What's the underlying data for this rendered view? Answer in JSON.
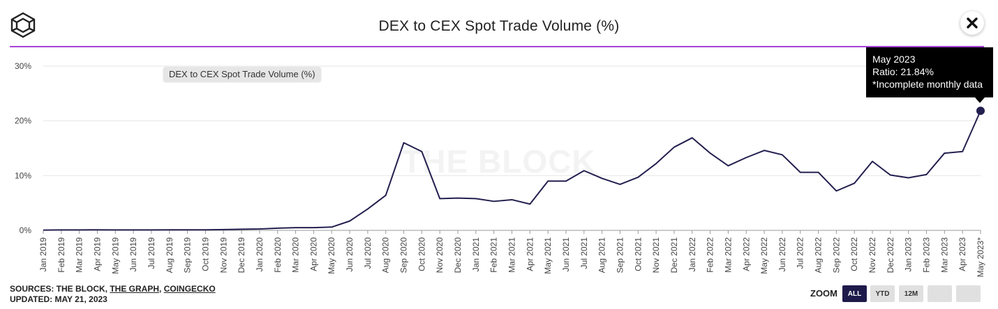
{
  "header": {
    "title": "DEX to CEX Spot Trade Volume (%)"
  },
  "legend": {
    "label": "DEX to CEX Spot Trade Volume (%)"
  },
  "watermark": "THE BLOCK",
  "tooltip": {
    "line1": "May 2023",
    "line2": "Ratio: 21.84%",
    "line3": "*Incomplete monthly data"
  },
  "footer": {
    "sources_prefix": "SOURCES: THE BLOCK, ",
    "source_graph": "THE GRAPH",
    "source_sep": ", ",
    "source_coingecko": "COINGECKO",
    "updated": "UPDATED: MAY 21, 2023"
  },
  "zoom": {
    "label": "ZOOM",
    "buttons": [
      {
        "label": "ALL",
        "active": true
      },
      {
        "label": "YTD",
        "active": false
      },
      {
        "label": "12M",
        "active": false
      },
      {
        "label": "",
        "active": false
      },
      {
        "label": "",
        "active": false
      }
    ]
  },
  "colors": {
    "line": "#231f4f",
    "accent": "#a640d6",
    "grid": "#e6e6e6"
  },
  "chart_data": {
    "type": "line",
    "title": "DEX to CEX Spot Trade Volume (%)",
    "xlabel": "",
    "ylabel": "",
    "ylim": [
      0,
      30
    ],
    "yticks": [
      0,
      10,
      20,
      30
    ],
    "ytick_labels": [
      "0%",
      "10%",
      "20%",
      "30%"
    ],
    "grid": true,
    "legend_position": "top-left",
    "categories": [
      "Jan 2019",
      "Feb 2019",
      "Mar 2019",
      "Apr 2019",
      "May 2019",
      "Jun 2019",
      "Jul 2019",
      "Aug 2019",
      "Sep 2019",
      "Oct 2019",
      "Nov 2019",
      "Dec 2019",
      "Jan 2020",
      "Feb 2020",
      "Mar 2020",
      "Apr 2020",
      "May 2020",
      "Jun 2020",
      "Jul 2020",
      "Aug 2020",
      "Sep 2020",
      "Oct 2020",
      "Nov 2020",
      "Dec 2020",
      "Jan 2021",
      "Feb 2021",
      "Mar 2021",
      "Apr 2021",
      "May 2021",
      "Jun 2021",
      "Jul 2021",
      "Aug 2021",
      "Sep 2021",
      "Oct 2021",
      "Nov 2021",
      "Dec 2021",
      "Jan 2022",
      "Feb 2022",
      "Mar 2022",
      "Apr 2022",
      "May 2022",
      "Jun 2022",
      "Jul 2022",
      "Aug 2022",
      "Sep 2022",
      "Oct 2022",
      "Nov 2022",
      "Dec 2022",
      "Jan 2023",
      "Feb 2023",
      "Mar 2023",
      "Apr 2023",
      "May 2023*"
    ],
    "series": [
      {
        "name": "DEX to CEX Spot Trade Volume (%)",
        "values": [
          0.05,
          0.08,
          0.08,
          0.1,
          0.08,
          0.08,
          0.08,
          0.1,
          0.1,
          0.1,
          0.15,
          0.2,
          0.25,
          0.4,
          0.5,
          0.5,
          0.6,
          1.7,
          3.9,
          6.4,
          16.0,
          14.4,
          5.8,
          5.9,
          5.8,
          5.3,
          5.6,
          4.8,
          9.0,
          9.0,
          10.9,
          9.5,
          8.4,
          9.7,
          12.2,
          15.2,
          16.9,
          14.1,
          11.8,
          13.3,
          14.6,
          13.8,
          10.6,
          10.6,
          7.2,
          8.6,
          12.6,
          10.1,
          9.6,
          10.2,
          14.1,
          14.4,
          21.84
        ]
      }
    ]
  }
}
